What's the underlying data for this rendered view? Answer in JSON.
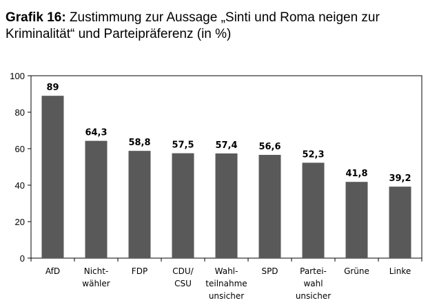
{
  "chart_data": {
    "type": "bar",
    "figure_label": "Grafik 16:",
    "title": "Zustimmung zur Aussage „Sinti und Roma neigen zur Kriminalität“ und Parteipräferenz (in %)",
    "categories": [
      [
        "AfD"
      ],
      [
        "Nicht-",
        "wähler"
      ],
      [
        "FDP"
      ],
      [
        "CDU/",
        "CSU"
      ],
      [
        "Wahl-",
        "teilnahme",
        "unsicher"
      ],
      [
        "SPD"
      ],
      [
        "Partei-",
        "wahl",
        "unsicher"
      ],
      [
        "Grüne"
      ],
      [
        "Linke"
      ]
    ],
    "values": [
      89,
      64.3,
      58.8,
      57.5,
      57.4,
      56.6,
      52.3,
      41.8,
      39.2
    ],
    "value_labels": [
      "89",
      "64,3",
      "58,8",
      "57,5",
      "57,4",
      "56,6",
      "52,3",
      "41,8",
      "39,2"
    ],
    "color": "#595959",
    "ylim": [
      0,
      100
    ],
    "yticks": [
      0,
      20,
      40,
      60,
      80,
      100
    ],
    "grid": false
  }
}
